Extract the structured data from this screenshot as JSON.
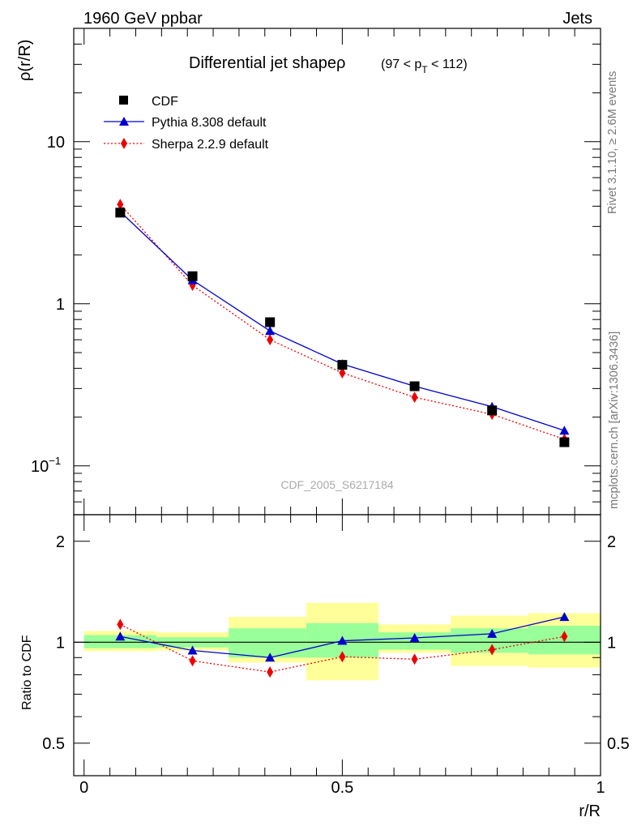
{
  "header": {
    "left": "1960 GeV ppbar",
    "right": "Jets"
  },
  "side_text": {
    "rivet": "Rivet 3.1.10, ≥ 2.6M events",
    "mcplots": "mcplots.cern.ch [arXiv:1306.3436]"
  },
  "chart_data": [
    {
      "type": "line",
      "title_main": "Differential jet shapeρ",
      "title_range": {
        "prefix": "(97 < p",
        "sub": "T",
        "suffix": " < 112)"
      },
      "xlabel": "",
      "ylabel": "ρ(r/R)",
      "yscale": "log",
      "ylim": [
        0.05,
        50
      ],
      "y_ticks": [
        {
          "value": 0.1,
          "label": "10",
          "exp": "−1"
        },
        {
          "value": 1,
          "label": "1"
        },
        {
          "value": 10,
          "label": "10"
        }
      ],
      "analysis_label": "CDF_2005_S6217184",
      "legend_position": "top-left",
      "x": [
        0.07,
        0.21,
        0.36,
        0.5,
        0.64,
        0.79,
        0.93
      ],
      "series": [
        {
          "name": "CDF",
          "style": "markers",
          "marker": "square",
          "color": "#000000",
          "values": [
            3.65,
            1.48,
            0.77,
            0.42,
            0.31,
            0.22,
            0.14
          ]
        },
        {
          "name": "Pythia 8.308 default",
          "style": "line",
          "marker": "triangle",
          "color": "#0000cc",
          "values": [
            3.7,
            1.4,
            0.68,
            0.425,
            0.31,
            0.232,
            0.165
          ]
        },
        {
          "name": "Sherpa 2.2.9 default",
          "style": "dotted",
          "marker": "diamond",
          "color": "#ee0000",
          "values": [
            4.1,
            1.3,
            0.6,
            0.375,
            0.265,
            0.208,
            0.146
          ]
        }
      ]
    },
    {
      "type": "line",
      "xlabel": "r/R",
      "ylabel": "Ratio to CDF",
      "yscale": "log",
      "ylim": [
        0.4,
        2.4
      ],
      "xlim": [
        -0.02,
        1.0
      ],
      "x_ticks": [
        {
          "value": 0,
          "label": "0"
        },
        {
          "value": 0.5,
          "label": "0.5"
        },
        {
          "value": 1,
          "label": "1"
        }
      ],
      "y_ticks": [
        {
          "value": 0.5,
          "label": "0.5"
        },
        {
          "value": 1,
          "label": "1"
        },
        {
          "value": 2,
          "label": "2"
        }
      ],
      "bin_edges": [
        0.0,
        0.14,
        0.28,
        0.43,
        0.57,
        0.71,
        0.86,
        1.0
      ],
      "band_stat": [
        [
          0.96,
          1.05
        ],
        [
          0.965,
          1.035
        ],
        [
          0.9,
          1.1
        ],
        [
          0.9,
          1.14
        ],
        [
          0.95,
          1.07
        ],
        [
          0.93,
          1.1
        ],
        [
          0.92,
          1.12
        ]
      ],
      "band_total": [
        [
          0.94,
          1.08
        ],
        [
          0.945,
          1.07
        ],
        [
          0.87,
          1.19
        ],
        [
          0.77,
          1.31
        ],
        [
          0.93,
          1.13
        ],
        [
          0.85,
          1.2
        ],
        [
          0.84,
          1.22
        ]
      ],
      "x": [
        0.07,
        0.21,
        0.36,
        0.5,
        0.64,
        0.79,
        0.93
      ],
      "series": [
        {
          "name": "Pythia 8.308 default",
          "color": "#0000cc",
          "marker": "triangle",
          "values": [
            1.04,
            0.945,
            0.9,
            1.01,
            1.03,
            1.06,
            1.19
          ]
        },
        {
          "name": "Sherpa 2.2.9 default",
          "color": "#ee0000",
          "marker": "diamond",
          "values": [
            1.13,
            0.88,
            0.815,
            0.905,
            0.89,
            0.95,
            1.04
          ]
        }
      ]
    }
  ]
}
